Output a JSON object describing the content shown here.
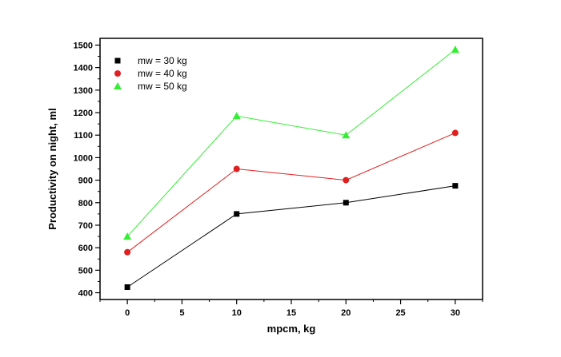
{
  "chart_data": {
    "type": "line",
    "xlabel": "mpcm, kg",
    "ylabel": "Productivity on night, ml",
    "xlim": [
      -2.5,
      32.5
    ],
    "ylim": [
      370,
      1530
    ],
    "xticks": [
      0,
      5,
      10,
      15,
      20,
      25,
      30
    ],
    "yticks": [
      400,
      500,
      600,
      700,
      800,
      900,
      1000,
      1100,
      1200,
      1300,
      1400,
      1500
    ],
    "grid": false,
    "legend_position": "top-left",
    "x": [
      0,
      10,
      20,
      30
    ],
    "series": [
      {
        "name": "mw = 30 kg",
        "values": [
          425,
          750,
          800,
          875
        ],
        "color": "#000000",
        "marker": "square"
      },
      {
        "name": "mw = 40 kg",
        "values": [
          580,
          950,
          900,
          1110
        ],
        "color": "#e02020",
        "marker": "circle"
      },
      {
        "name": "mw = 50 kg",
        "values": [
          650,
          1185,
          1100,
          1480
        ],
        "color": "#33ee33",
        "marker": "triangle"
      }
    ]
  }
}
